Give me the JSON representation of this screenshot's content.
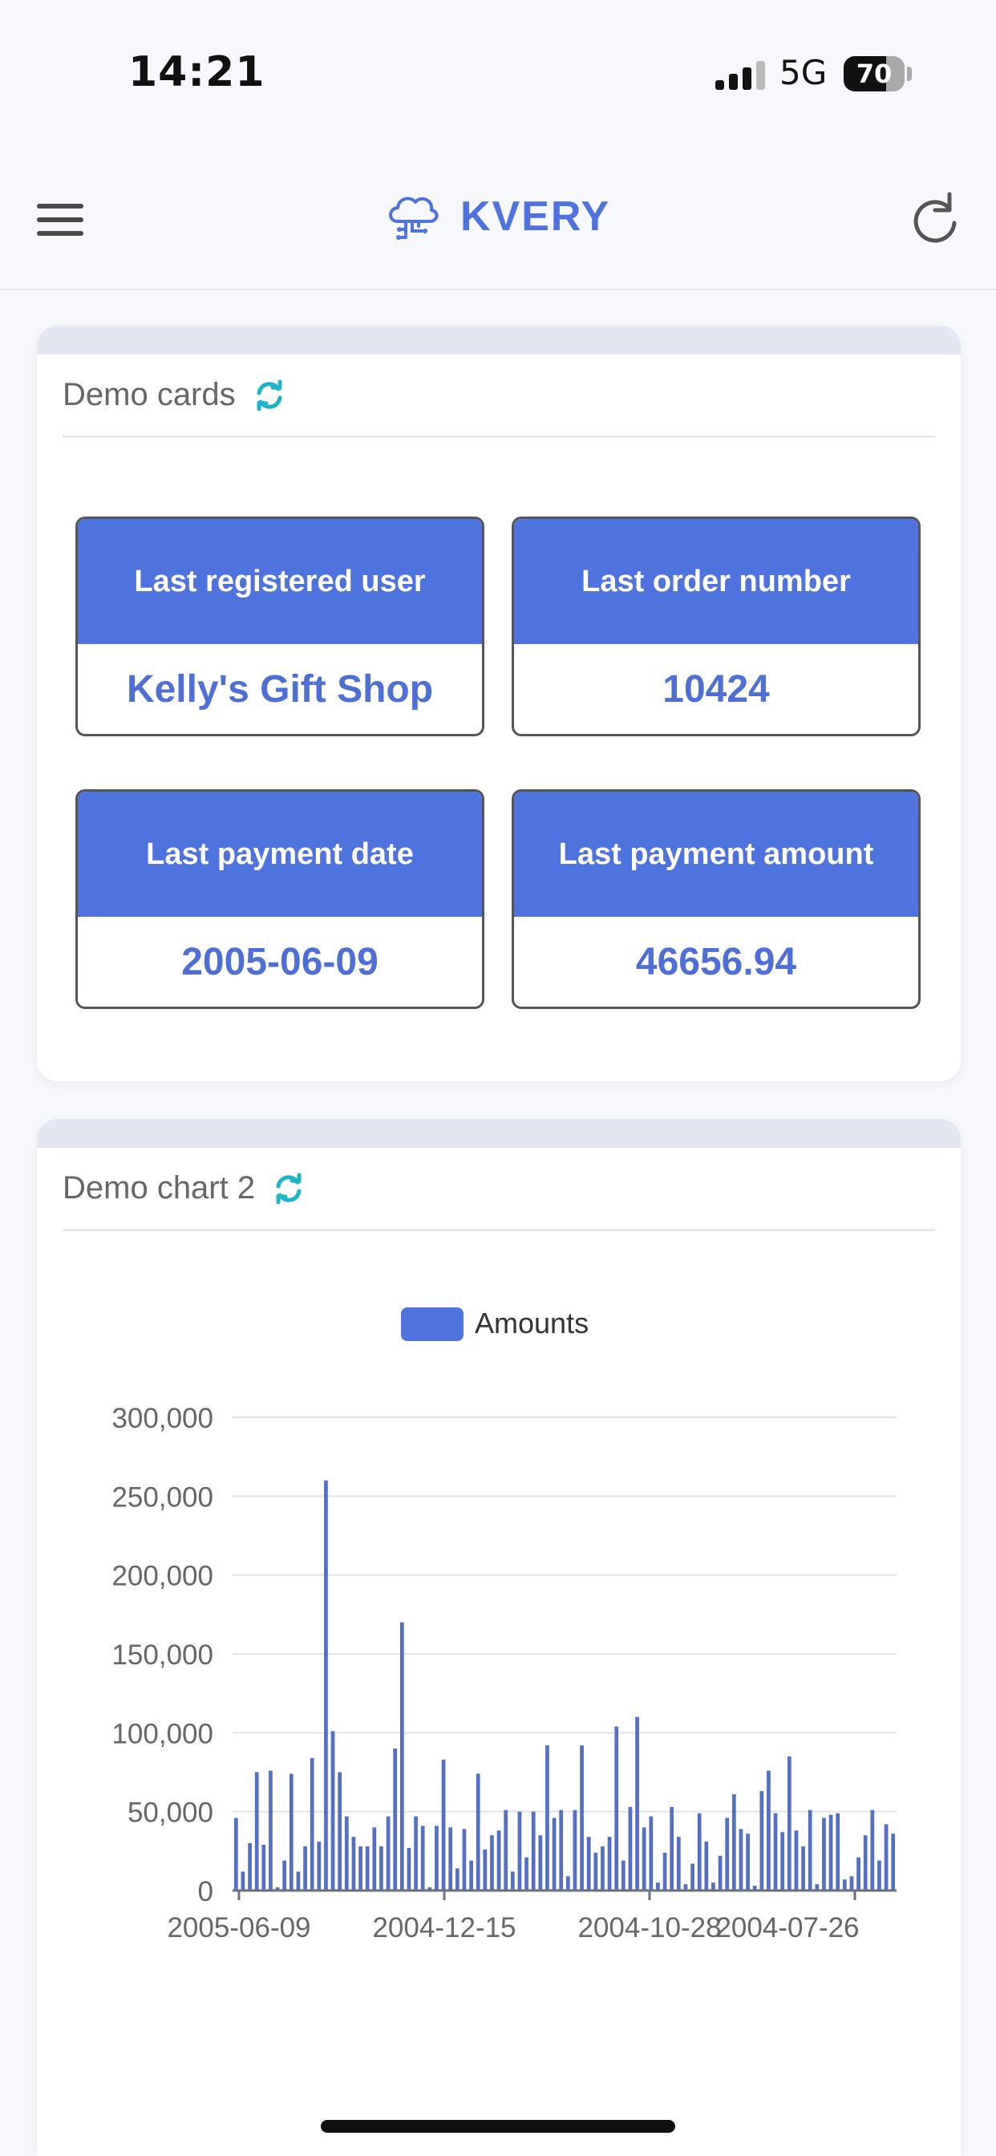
{
  "status_bar": {
    "time": "14:21",
    "network": "5G",
    "battery": "70",
    "battery_level": 0.7
  },
  "header": {
    "title": "KVERY",
    "menu_icon": "hamburger-menu-icon",
    "logo_icon": "cloud-circuit-icon",
    "refresh_icon": "refresh-icon"
  },
  "cards_panel": {
    "title": "Demo cards",
    "tiles": [
      {
        "label": "Last registered user",
        "value": "Kelly's Gift Shop"
      },
      {
        "label": "Last order number",
        "value": "10424"
      },
      {
        "label": "Last payment date",
        "value": "2005-06-09"
      },
      {
        "label": "Last payment amount",
        "value": "46656.94"
      }
    ]
  },
  "chart_panel": {
    "title": "Demo chart 2",
    "chart_data": {
      "type": "bar",
      "legend": "top",
      "series": [
        {
          "name": "Amounts",
          "color": "#5470c6"
        }
      ],
      "y_ticks": [
        "300,000",
        "250,000",
        "200,000",
        "150,000",
        "100,000",
        "50,000",
        "0"
      ],
      "x_ticks": [
        "2005-06-09",
        "2004-12-15",
        "2004-10-28",
        "2004-07-26"
      ],
      "ylim": [
        0,
        300000
      ],
      "grid": "horizontal",
      "values": [
        46000,
        12000,
        30000,
        75000,
        29000,
        76000,
        2000,
        19000,
        74000,
        12000,
        28000,
        84000,
        31000,
        260000,
        101000,
        75000,
        47000,
        34000,
        28000,
        28000,
        40000,
        28000,
        47000,
        90000,
        170000,
        27000,
        47000,
        41000,
        2000,
        41000,
        83000,
        40000,
        14000,
        39000,
        19000,
        74000,
        26000,
        35000,
        38000,
        51000,
        12000,
        50000,
        21000,
        50000,
        35000,
        92000,
        46000,
        51000,
        9000,
        51000,
        92000,
        34000,
        24000,
        28000,
        34000,
        104000,
        19000,
        53000,
        110000,
        40000,
        47000,
        5000,
        24000,
        53000,
        34000,
        4000,
        17000,
        49000,
        31000,
        5000,
        22000,
        46000,
        61000,
        39000,
        36000,
        3000,
        63000,
        76000,
        49000,
        37000,
        85000,
        38000,
        28000,
        51000,
        4000,
        46000,
        48000,
        49000,
        7000,
        9000,
        21000,
        35000,
        51000,
        19000,
        42000,
        36000
      ],
      "zoom_range": [
        0,
        100
      ]
    }
  }
}
